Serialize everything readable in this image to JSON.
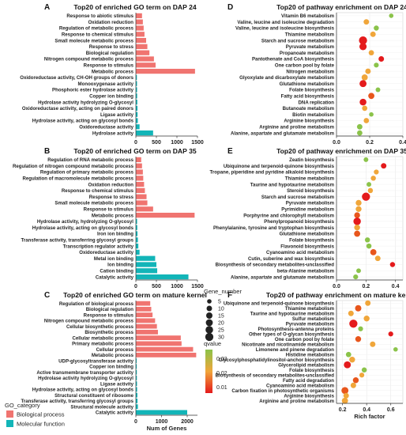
{
  "colors": {
    "biological_process": "#f07470",
    "molecular_function": "#12b5b8",
    "qvalue_high": "#e41a1c",
    "qvalue_mid": "#f0a63a",
    "qvalue_low": "#8bc34a"
  },
  "legends": {
    "go_category_title": "GO_category",
    "go_category_items": [
      "Biological process",
      "Molecular function"
    ],
    "gene_number_title": "Gene_number",
    "gene_number_sizes": [
      "5",
      "10",
      "15",
      "20",
      "25",
      "30"
    ],
    "qvalue_title": "qvalue",
    "qvalue_ticks": [
      "0.03",
      "0.02",
      "0.01"
    ]
  },
  "chart_data": [
    {
      "panel": "A",
      "type": "bar",
      "orientation": "horizontal",
      "title": "Top20 of enriched GO term on DAP 24",
      "xlabel": "",
      "xlim": [
        0,
        1500
      ],
      "xticks": [
        "0",
        "500",
        "1000",
        "1500"
      ],
      "categories": [
        "Response to abiotic stimulus",
        "Oxidation reduction",
        "Regulation of metabolic process",
        "Response to chemical stimulus",
        "Small molecule metabolic process",
        "Response to stress",
        "Biological regulation",
        "Nitrogen compound metabolic process",
        "Response to stimulus",
        "Metabolic process",
        "Oxidoreductase activity, CH-OH groups of donors",
        "Monooxygenase activity",
        "Phosphoric ester hydrolase activity",
        "Copper ion binding",
        "Hydrolase activity hydrolyzing O-glycosyl",
        "Oxidoreductase activity, acting on paired donors",
        "Ligase activity",
        "Hydrolase activity, acting on glycosyl bonds",
        "Oxidoreductase activity",
        "Hydrolase activity"
      ],
      "values": [
        150,
        170,
        190,
        210,
        250,
        280,
        330,
        440,
        480,
        1440,
        25,
        28,
        30,
        32,
        35,
        40,
        42,
        48,
        90,
        420
      ],
      "groups": [
        "bp",
        "bp",
        "bp",
        "bp",
        "bp",
        "bp",
        "bp",
        "bp",
        "bp",
        "bp",
        "mf",
        "mf",
        "mf",
        "mf",
        "mf",
        "mf",
        "mf",
        "mf",
        "mf",
        "mf"
      ]
    },
    {
      "panel": "B",
      "type": "bar",
      "orientation": "horizontal",
      "title": "Top20 of enriched GO term on DAP 35",
      "xlabel": "",
      "xlim": [
        0,
        1500
      ],
      "xticks": [
        "0",
        "500",
        "1000",
        "1500"
      ],
      "categories": [
        "Regulation of RNA metabolic process",
        "Regulation of nitrogen compound metabolic process",
        "Regulation of primary metabolic process",
        "Regulation of macromolecule metabolic process",
        "Oxidation reduction",
        "Response to chemical stimulus",
        "Response to stress",
        "Small molecule metabolic process",
        "Response to stimulus",
        "Metabolic process",
        "Hydrolase activity, hydrolyzing O-glycosyl",
        "Hydrolase activity, acting on glycosyl bonds",
        "Iron ion binding",
        "Transferase activity, transferring glycosyl groups",
        "Transcription regulator activity",
        "Oxidoreductase activity",
        "Metal ion binding",
        "Ion binding",
        "Cation binding",
        "Catalytic activity"
      ],
      "values": [
        130,
        150,
        170,
        180,
        200,
        220,
        260,
        280,
        420,
        1430,
        30,
        35,
        40,
        50,
        60,
        90,
        470,
        500,
        520,
        1280
      ],
      "groups": [
        "bp",
        "bp",
        "bp",
        "bp",
        "bp",
        "bp",
        "bp",
        "bp",
        "bp",
        "bp",
        "mf",
        "mf",
        "mf",
        "mf",
        "mf",
        "mf",
        "mf",
        "mf",
        "mf",
        "mf"
      ]
    },
    {
      "panel": "C",
      "type": "bar",
      "orientation": "horizontal",
      "title": "Top20 of enriched GO term on mature kernel",
      "xlabel": "Num of Genes",
      "xlim": [
        0,
        2400
      ],
      "xticks": [
        "0",
        "1000",
        "2000"
      ],
      "categories": [
        "Regulation of biological process",
        "Biological regulation",
        "Response to stimulus",
        "Nitrogen compound metabolic process",
        "Cellular biosynthetic process",
        "Biosynthetic process",
        "Cellular metabolic process",
        "Primary metabolic process",
        "Cellular process",
        "Metabolic process",
        "UDP-glycosyltransferase activity",
        "Copper ion binding",
        "Active transmembrane transporter activity",
        "Hydrolase activity hydrolyzing O-glycosyl",
        "Ligase activity",
        "Hydrolase activity, acting on glycosyl bonds",
        "Structural constituent of ribosome",
        "Transferase activity, transferring glycosyl groups",
        "Structural molecule activity",
        "Catalytic activity"
      ],
      "values": [
        560,
        600,
        650,
        750,
        820,
        860,
        1750,
        1780,
        2230,
        2350,
        30,
        35,
        38,
        40,
        45,
        50,
        60,
        65,
        80,
        2000
      ],
      "groups": [
        "bp",
        "bp",
        "bp",
        "bp",
        "bp",
        "bp",
        "bp",
        "bp",
        "bp",
        "bp",
        "mf",
        "mf",
        "mf",
        "mf",
        "mf",
        "mf",
        "mf",
        "mf",
        "mf",
        "mf"
      ]
    },
    {
      "panel": "D",
      "type": "scatter",
      "title": "Top20 of pathway enrichment on DAP 24",
      "xlabel": "",
      "xlim": [
        0,
        0.4
      ],
      "xticks": [
        "0.0",
        "0.2",
        "0.4"
      ],
      "categories": [
        "Vitamin B6 metabolism",
        "Valine, leucine and isoleucine degradation",
        "Valine, leucine and isoleucine biosynthesis",
        "Thiamine metabolism",
        "Starch and sucrose metabolism",
        "Pyruvate metabolism",
        "Propanoate metabolism",
        "Pantothenate and CoA biosynthesis",
        "One carbon pool by folate",
        "Nitrogen metabolism",
        "Glyoxylate and dicarboxylate metabolism",
        "Glutathione metabolism",
        "Folate biosynthesis",
        "Fatty acid biosynthesis",
        "DNA replication",
        "Butanoate metabolism",
        "Biotin metabolism",
        "Arginine biosynthesis",
        "Arginine and proline metabolism",
        "Alanine, aspartate and glutamate metabolism"
      ],
      "x": [
        0.33,
        0.18,
        0.24,
        0.22,
        0.16,
        0.16,
        0.21,
        0.27,
        0.24,
        0.19,
        0.17,
        0.16,
        0.25,
        0.21,
        0.16,
        0.17,
        0.21,
        0.18,
        0.14,
        0.14
      ],
      "gene_number": [
        5,
        10,
        8,
        10,
        30,
        22,
        9,
        10,
        7,
        10,
        14,
        20,
        6,
        14,
        18,
        9,
        5,
        9,
        10,
        9
      ],
      "qvalue": [
        0.03,
        0.02,
        0.03,
        0.02,
        0.005,
        0.005,
        0.02,
        0.005,
        0.03,
        0.02,
        0.02,
        0.005,
        0.03,
        0.01,
        0.005,
        0.02,
        0.03,
        0.02,
        0.03,
        0.03
      ]
    },
    {
      "panel": "E",
      "type": "scatter",
      "title": "Top20 of pathway enrichment on DAP 35",
      "xlabel": "",
      "xlim": [
        0,
        0.45
      ],
      "xticks": [
        "0.0",
        "0.2",
        "0.4"
      ],
      "categories": [
        "Zeatin biosynthesis",
        "Ubiquinone and terpenoid-quinone biosynthesis",
        "Tropane, piperidine and pyridine alkaloid biosynthesis",
        "Thiamine metabolism",
        "Taurine and hypotaurine metabolism",
        "Steroid biosynthesis",
        "Starch and sucrose metabolism",
        "Pyruvate metabolism",
        "Pyrimidine metabolism",
        "Porphyrine and chlorophyll metabolism",
        "Phenylpropanoid biosynthesis",
        "Phenylalanine, tyrosine and tryptophan biosynthesis",
        "Glutathione metabolism",
        "Folate biosynthesis",
        "Flavonoid biosynthesis",
        "Cyanoamino acid metabolism",
        "Cutin, suberine and wax biosynthesis",
        "Biosynthesis of secondary metabolites-unclassified",
        "beta-Alanine metabolism",
        "Alanine, aspartate and glutamate metabolism"
      ],
      "x": [
        0.2,
        0.32,
        0.27,
        0.25,
        0.22,
        0.23,
        0.2,
        0.15,
        0.15,
        0.14,
        0.14,
        0.14,
        0.14,
        0.21,
        0.22,
        0.25,
        0.28,
        0.38,
        0.15,
        0.13
      ],
      "gene_number": [
        6,
        10,
        7,
        8,
        6,
        8,
        30,
        12,
        12,
        12,
        24,
        12,
        14,
        8,
        8,
        14,
        10,
        8,
        6,
        7
      ],
      "qvalue": [
        0.03,
        0.005,
        0.02,
        0.02,
        0.03,
        0.02,
        0.005,
        0.02,
        0.02,
        0.01,
        0.005,
        0.02,
        0.01,
        0.03,
        0.03,
        0.01,
        0.02,
        0.005,
        0.03,
        0.03
      ]
    },
    {
      "panel": "F",
      "type": "scatter",
      "title": "Top20 of pathway enrichment on mature kernel",
      "xlabel": "Rich factor",
      "xlim": [
        0.15,
        0.7
      ],
      "xticks": [
        "0.2",
        "0.4",
        "0.6"
      ],
      "categories": [
        "Ubiquinone and terpenoid-quinone biosynthesis",
        "Thiamine metabolism",
        "Taurine and hypotaurine metabolism",
        "Sulfur metabolism",
        "Pyruvate metabolism",
        "Photosynthesis-antenna proteins",
        "Other types of O-glycan biosynthesis",
        "One carbon pool by folate",
        "Nicotinate and nicotinamide metabolism",
        "Limonene and pinene degradation",
        "Histidine metabolism",
        "Glycosylphosphatidylinositol-anchor biosynthesis",
        "Glycerolipid metabolism",
        "Folate biosynthesis",
        "Biosynthesis of secondary metabolites-unclassified",
        "Fatty acid degradation",
        "Cyanoamino acid metabolism",
        "Carbon fixation in photosynthetic organisms",
        "Arginine biosynthesis",
        "Arginine and proline metabolism"
      ],
      "x": [
        0.41,
        0.33,
        0.27,
        0.4,
        0.29,
        0.35,
        0.6,
        0.33,
        0.45,
        0.64,
        0.25,
        0.28,
        0.24,
        0.38,
        0.36,
        0.31,
        0.29,
        0.22,
        0.23,
        0.22
      ],
      "gene_number": [
        10,
        15,
        10,
        12,
        30,
        7,
        7,
        12,
        10,
        5,
        9,
        12,
        20,
        8,
        7,
        12,
        10,
        20,
        10,
        14
      ],
      "qvalue": [
        0.02,
        0.01,
        0.02,
        0.02,
        0.005,
        0.03,
        0.005,
        0.01,
        0.02,
        0.03,
        0.03,
        0.02,
        0.005,
        0.03,
        0.02,
        0.01,
        0.02,
        0.01,
        0.02,
        0.02
      ]
    }
  ]
}
